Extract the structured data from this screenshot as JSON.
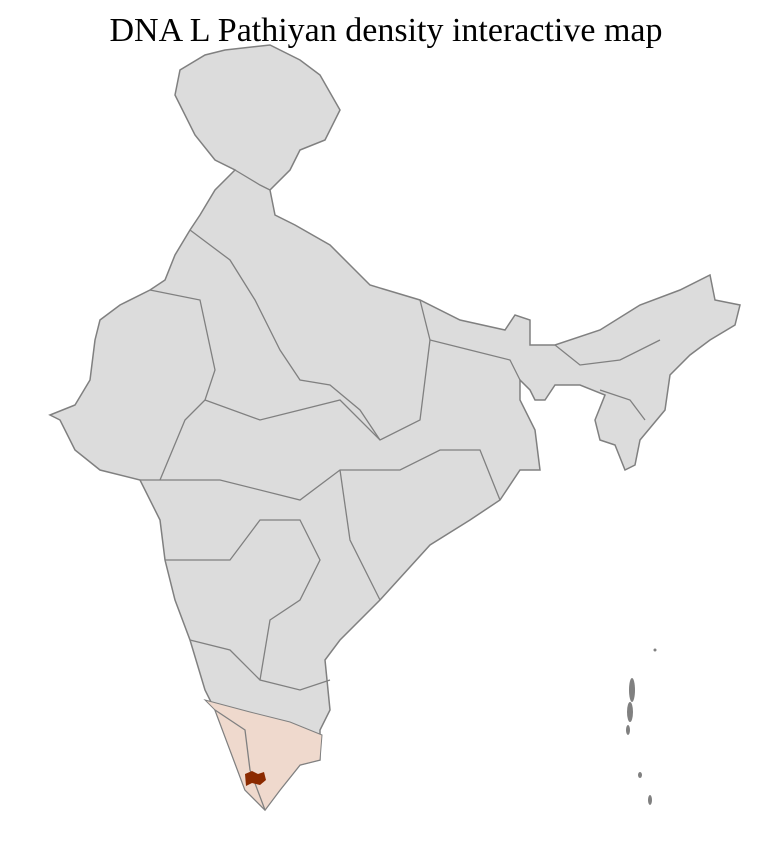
{
  "title": "DNA L Pathiyan density interactive map",
  "colors": {
    "land": "#dcdcdc",
    "state_border": "#808080",
    "district_border": "#ffffff",
    "highlight_region": "#efd9cd",
    "highlight_district": "#8b2a00"
  }
}
